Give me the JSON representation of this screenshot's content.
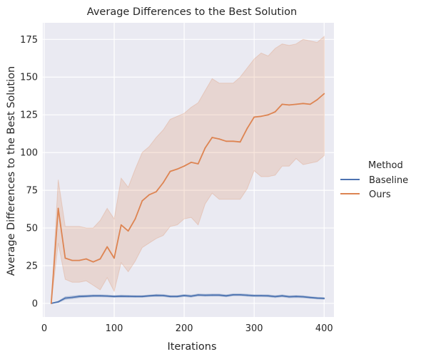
{
  "chart_data": {
    "type": "line",
    "title": "Average Differences to the Best Solution",
    "xlabel": "Iterations",
    "ylabel": "Average Differences to the Best Solution",
    "xlim": [
      -2,
      414
    ],
    "ylim": [
      -9,
      186
    ],
    "xticks": [
      0,
      100,
      200,
      300,
      400
    ],
    "yticks": [
      0,
      25,
      50,
      75,
      100,
      125,
      150,
      175
    ],
    "grid": true,
    "legend": {
      "title": "Method",
      "placement": "center-right"
    },
    "x": [
      10,
      20,
      30,
      40,
      50,
      60,
      70,
      80,
      90,
      100,
      110,
      120,
      130,
      140,
      150,
      160,
      170,
      180,
      190,
      200,
      210,
      220,
      230,
      240,
      250,
      260,
      270,
      280,
      290,
      300,
      310,
      320,
      330,
      340,
      350,
      360,
      370,
      380,
      390,
      400
    ],
    "series": [
      {
        "name": "Baseline",
        "color": "#4c72b0",
        "values": [
          0,
          1,
          3.5,
          4,
          4.6,
          4.8,
          5,
          5,
          4.9,
          4.6,
          4.8,
          4.7,
          4.6,
          4.6,
          5,
          5.3,
          5.2,
          4.6,
          4.6,
          5.2,
          4.8,
          5.6,
          5.4,
          5.5,
          5.5,
          5,
          5.7,
          5.7,
          5.4,
          5.1,
          5.1,
          5,
          4.5,
          5,
          4.4,
          4.6,
          4.4,
          3.9,
          3.5,
          3.3
        ],
        "lower": [
          0,
          0.5,
          2.6,
          3.1,
          3.8,
          4.1,
          4.3,
          4.3,
          4.2,
          4,
          4.1,
          4,
          4,
          4,
          4.4,
          4.6,
          4.5,
          4,
          4,
          4.5,
          4.1,
          4.9,
          4.7,
          4.8,
          4.8,
          4.3,
          5,
          5,
          4.7,
          4.4,
          4.4,
          4.3,
          3.8,
          4.3,
          3.7,
          3.9,
          3.7,
          3.3,
          2.9,
          2.7
        ],
        "upper": [
          0,
          1.5,
          4.4,
          4.9,
          5.4,
          5.5,
          5.7,
          5.7,
          5.6,
          5.2,
          5.5,
          5.4,
          5.2,
          5.2,
          5.6,
          6,
          5.9,
          5.2,
          5.2,
          5.9,
          5.5,
          6.3,
          6.1,
          6.2,
          6.2,
          5.7,
          6.4,
          6.4,
          6.1,
          5.8,
          5.8,
          5.7,
          5.2,
          5.7,
          5.1,
          5.3,
          5.1,
          4.5,
          4.1,
          3.9
        ]
      },
      {
        "name": "Ours",
        "color": "#dd8452",
        "values": [
          0,
          63,
          30,
          28.5,
          28.5,
          29.5,
          27.5,
          29.5,
          37.5,
          30,
          52,
          48,
          56,
          68,
          72,
          74,
          80,
          87.5,
          89,
          91,
          93.5,
          92.5,
          103,
          110,
          109,
          107.5,
          107.5,
          107,
          116,
          123.5,
          124,
          125,
          127,
          132,
          131.5,
          132,
          132.5,
          132,
          135,
          139
        ],
        "lower": [
          0,
          40,
          16,
          14,
          14,
          15,
          12,
          9,
          17,
          8,
          27,
          21,
          28,
          37,
          40,
          43,
          45,
          51,
          52,
          56,
          57,
          52,
          66,
          73,
          69,
          69,
          69,
          69,
          76,
          88,
          84,
          84,
          85,
          91,
          91,
          96,
          92,
          93,
          94,
          98
        ],
        "upper": [
          0,
          82,
          51,
          51,
          51,
          50,
          50,
          55,
          63,
          56,
          83,
          77,
          89,
          100,
          104,
          110,
          115,
          122,
          124,
          126,
          130,
          133,
          141,
          149,
          146,
          146,
          146,
          150,
          156,
          162,
          166,
          164,
          169,
          172,
          171,
          172,
          175,
          174,
          173,
          177
        ]
      }
    ]
  }
}
